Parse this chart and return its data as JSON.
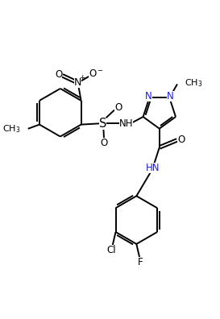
{
  "bg_color": "#ffffff",
  "line_color": "#000000",
  "figsize": [
    2.73,
    3.96
  ],
  "dpi": 100,
  "bond_lw": 1.4,
  "font_size": 8.5,
  "xlim": [
    0,
    10
  ],
  "ylim": [
    0,
    14.5
  ]
}
